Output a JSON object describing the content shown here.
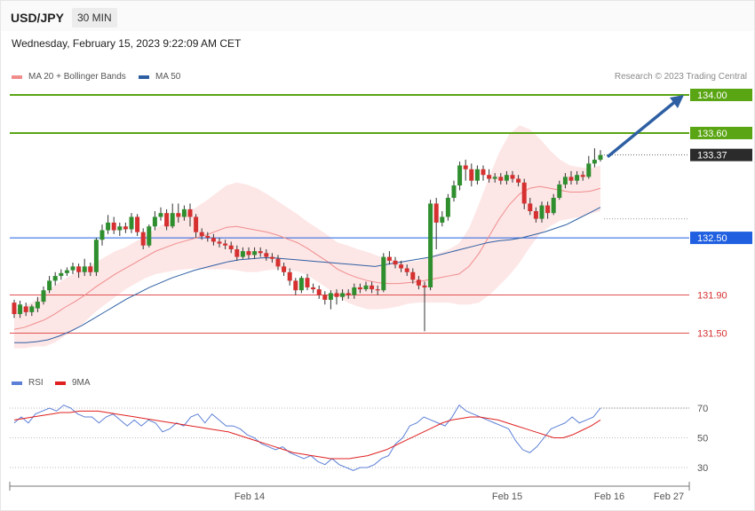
{
  "header": {
    "symbol": "USD/JPY",
    "timeframe": "30 MIN",
    "datetime": "Wednesday, February 15, 2023 9:22:09 AM CET"
  },
  "legend": {
    "ma20_label": "MA 20 + Bollinger Bands",
    "ma20_color": "#f08c8c",
    "ma50_label": "MA 50",
    "ma50_color": "#2e5fa3",
    "rsi_label": "RSI",
    "rsi_color": "#5b7fd6",
    "rsi_ma_label": "9MA",
    "rsi_ma_color": "#e02020"
  },
  "credit": "Research © 2023 Trading Central",
  "colors": {
    "up": "#2f8f2f",
    "down": "#d63030",
    "resistance": "#5aa514",
    "pivot": "#1f5fe0",
    "support": "#e05050"
  },
  "chart_data": {
    "type": "candlestick",
    "timeframe": "30 MIN",
    "ylim": [
      131.3,
      134.15
    ],
    "x_ticks": [
      "Feb 14",
      "Feb 15",
      "Feb 16",
      "Feb 27"
    ],
    "last_price": 133.37,
    "levels": [
      {
        "value": 134.0,
        "label": "134.00",
        "kind": "resistance"
      },
      {
        "value": 133.6,
        "label": "133.60",
        "kind": "resistance"
      },
      {
        "value": 132.5,
        "label": "132.50",
        "kind": "pivot"
      },
      {
        "value": 131.9,
        "label": "131.90",
        "kind": "support"
      },
      {
        "value": 131.5,
        "label": "131.50",
        "kind": "support"
      }
    ],
    "projection": {
      "from": 133.35,
      "to": 134.0,
      "direction": "up"
    },
    "candles": [
      [
        131.82,
        131.7,
        131.85,
        131.66
      ],
      [
        131.7,
        131.8,
        131.84,
        131.66
      ],
      [
        131.78,
        131.72,
        131.82,
        131.68
      ],
      [
        131.72,
        131.78,
        131.8,
        131.68
      ],
      [
        131.76,
        131.83,
        131.88,
        131.72
      ],
      [
        131.83,
        131.95,
        131.99,
        131.8
      ],
      [
        131.95,
        132.05,
        132.1,
        131.92
      ],
      [
        132.05,
        132.1,
        132.14,
        132.0
      ],
      [
        132.1,
        132.13,
        132.17,
        132.06
      ],
      [
        132.13,
        132.16,
        132.19,
        132.1
      ],
      [
        132.16,
        132.2,
        132.24,
        132.12
      ],
      [
        132.2,
        132.14,
        132.23,
        132.08
      ],
      [
        132.14,
        132.2,
        132.28,
        132.1
      ],
      [
        132.2,
        132.14,
        132.24,
        132.1
      ],
      [
        132.14,
        132.48,
        132.5,
        132.1
      ],
      [
        132.48,
        132.58,
        132.64,
        132.42
      ],
      [
        132.58,
        132.66,
        132.74,
        132.54
      ],
      [
        132.66,
        132.58,
        132.72,
        132.54
      ],
      [
        132.58,
        132.62,
        132.66,
        132.52
      ],
      [
        132.62,
        132.59,
        132.66,
        132.55
      ],
      [
        132.59,
        132.72,
        132.76,
        132.55
      ],
      [
        132.72,
        132.56,
        132.75,
        132.52
      ],
      [
        132.56,
        132.42,
        132.6,
        132.38
      ],
      [
        132.42,
        132.62,
        132.64,
        132.4
      ],
      [
        132.62,
        132.72,
        132.78,
        132.58
      ],
      [
        132.72,
        132.76,
        132.82,
        132.68
      ],
      [
        132.76,
        132.62,
        132.8,
        132.58
      ],
      [
        132.62,
        132.76,
        132.86,
        132.6
      ],
      [
        132.76,
        132.72,
        132.86,
        132.66
      ],
      [
        132.72,
        132.8,
        132.84,
        132.68
      ],
      [
        132.8,
        132.72,
        132.86,
        132.62
      ],
      [
        132.72,
        132.56,
        132.75,
        132.5
      ],
      [
        132.56,
        132.52,
        132.6,
        132.48
      ],
      [
        132.52,
        132.5,
        132.56,
        132.46
      ],
      [
        132.5,
        132.46,
        132.54,
        132.42
      ],
      [
        132.46,
        132.44,
        132.5,
        132.4
      ],
      [
        132.44,
        132.42,
        132.48,
        132.38
      ],
      [
        132.42,
        132.38,
        132.46,
        132.34
      ],
      [
        132.38,
        132.3,
        132.42,
        132.26
      ],
      [
        132.3,
        132.36,
        132.4,
        132.28
      ],
      [
        132.36,
        132.32,
        132.4,
        132.28
      ],
      [
        132.32,
        132.36,
        132.4,
        132.28
      ],
      [
        132.36,
        132.34,
        132.4,
        132.3
      ],
      [
        132.34,
        132.3,
        132.38,
        132.26
      ],
      [
        132.3,
        132.28,
        132.34,
        132.24
      ],
      [
        132.28,
        132.2,
        132.32,
        132.16
      ],
      [
        132.2,
        132.14,
        132.24,
        132.1
      ],
      [
        132.14,
        132.05,
        132.18,
        132.0
      ],
      [
        132.05,
        131.95,
        132.08,
        131.9
      ],
      [
        131.95,
        132.08,
        132.1,
        131.92
      ],
      [
        132.08,
        131.98,
        132.12,
        131.95
      ],
      [
        131.98,
        131.96,
        132.02,
        131.92
      ],
      [
        131.96,
        131.9,
        132.0,
        131.86
      ],
      [
        131.9,
        131.85,
        131.94,
        131.8
      ],
      [
        131.85,
        131.92,
        131.95,
        131.75
      ],
      [
        131.92,
        131.88,
        131.96,
        131.8
      ],
      [
        131.88,
        131.92,
        131.96,
        131.84
      ],
      [
        131.92,
        131.9,
        131.96,
        131.86
      ],
      [
        131.9,
        131.98,
        132.02,
        131.86
      ],
      [
        131.98,
        131.96,
        132.02,
        131.92
      ],
      [
        131.96,
        132.0,
        132.04,
        131.94
      ],
      [
        132.0,
        131.96,
        132.04,
        131.92
      ],
      [
        131.96,
        131.95,
        132.0,
        131.9
      ],
      [
        131.95,
        132.3,
        132.34,
        131.93
      ],
      [
        132.3,
        132.26,
        132.36,
        132.22
      ],
      [
        132.26,
        132.22,
        132.3,
        132.18
      ],
      [
        132.22,
        132.18,
        132.26,
        132.14
      ],
      [
        132.18,
        132.14,
        132.22,
        132.1
      ],
      [
        132.14,
        132.06,
        132.18,
        132.02
      ],
      [
        132.06,
        132.0,
        132.1,
        131.96
      ],
      [
        132.0,
        131.98,
        132.04,
        131.52
      ],
      [
        131.98,
        132.86,
        132.9,
        131.95
      ],
      [
        132.86,
        132.66,
        132.92,
        132.38
      ],
      [
        132.66,
        132.72,
        132.78,
        132.62
      ],
      [
        132.72,
        132.92,
        132.96,
        132.68
      ],
      [
        132.92,
        133.05,
        133.1,
        132.88
      ],
      [
        133.05,
        133.26,
        133.3,
        133.0
      ],
      [
        133.26,
        133.22,
        133.32,
        133.1
      ],
      [
        133.22,
        133.1,
        133.28,
        133.04
      ],
      [
        133.1,
        133.22,
        133.26,
        133.06
      ],
      [
        133.22,
        133.16,
        133.26,
        133.1
      ],
      [
        133.16,
        133.12,
        133.22,
        133.08
      ],
      [
        133.12,
        133.14,
        133.18,
        133.08
      ],
      [
        133.14,
        133.1,
        133.18,
        133.06
      ],
      [
        133.1,
        133.16,
        133.2,
        133.06
      ],
      [
        133.16,
        133.12,
        133.2,
        133.08
      ],
      [
        133.12,
        133.08,
        133.16,
        133.04
      ],
      [
        133.08,
        132.86,
        133.12,
        132.8
      ],
      [
        132.86,
        132.78,
        132.92,
        132.74
      ],
      [
        132.78,
        132.7,
        132.82,
        132.66
      ],
      [
        132.7,
        132.84,
        132.88,
        132.66
      ],
      [
        132.84,
        132.76,
        132.88,
        132.7
      ],
      [
        132.76,
        132.92,
        132.96,
        132.74
      ],
      [
        132.92,
        133.06,
        133.1,
        132.9
      ],
      [
        133.06,
        133.14,
        133.18,
        133.02
      ],
      [
        133.14,
        133.1,
        133.2,
        133.06
      ],
      [
        133.1,
        133.16,
        133.2,
        133.06
      ],
      [
        133.16,
        133.14,
        133.2,
        133.1
      ],
      [
        133.14,
        133.28,
        133.36,
        133.12
      ],
      [
        133.28,
        133.32,
        133.44,
        133.24
      ],
      [
        133.32,
        133.37,
        133.42,
        133.3
      ]
    ],
    "ma20": [
      131.54,
      131.56,
      131.6,
      131.64,
      131.7,
      131.77,
      131.83,
      131.9,
      131.98,
      132.05,
      132.12,
      132.18,
      132.24,
      132.3,
      132.36,
      132.4,
      132.44,
      132.47,
      132.5,
      132.53,
      132.57,
      132.61,
      132.62,
      132.6,
      132.58,
      132.56,
      132.53,
      132.49,
      132.45,
      132.39,
      132.32,
      132.25,
      132.17,
      132.12,
      132.08,
      132.05,
      132.03,
      132.02,
      132.02,
      132.03,
      132.04,
      132.06,
      132.08,
      132.1,
      132.12,
      132.2,
      132.34,
      132.52,
      132.7,
      132.85,
      132.96,
      133.02,
      133.04,
      133.02,
      133.0,
      132.98,
      132.98,
      132.99,
      133.02
    ],
    "ma50": [
      131.4,
      131.4,
      131.41,
      131.43,
      131.47,
      131.52,
      131.58,
      131.65,
      131.72,
      131.79,
      131.86,
      131.92,
      131.98,
      132.03,
      132.08,
      132.12,
      132.16,
      132.19,
      132.22,
      132.25,
      132.27,
      132.28,
      132.29,
      132.29,
      132.28,
      132.27,
      132.26,
      132.25,
      132.24,
      132.23,
      132.22,
      132.21,
      132.2,
      132.22,
      132.24,
      132.26,
      132.28,
      132.3,
      132.33,
      132.36,
      132.39,
      132.42,
      132.45,
      132.47,
      132.48,
      132.5,
      132.53,
      132.56,
      132.6,
      132.64,
      132.7,
      132.76,
      132.82
    ],
    "rsi": [
      60,
      64,
      60,
      66,
      68,
      70,
      68,
      72,
      70,
      66,
      64,
      64,
      60,
      64,
      66,
      62,
      58,
      62,
      58,
      62,
      60,
      54,
      56,
      60,
      58,
      64,
      66,
      60,
      66,
      62,
      58,
      58,
      56,
      52,
      50,
      46,
      44,
      42,
      44,
      40,
      38,
      36,
      38,
      34,
      32,
      36,
      32,
      30,
      28,
      30,
      30,
      32,
      36,
      38,
      46,
      50,
      58,
      60,
      64,
      62,
      60,
      58,
      64,
      72,
      68,
      66,
      64,
      62,
      60,
      58,
      56,
      48,
      42,
      40,
      44,
      50,
      56,
      58,
      60,
      64,
      60,
      62,
      64,
      70
    ],
    "rsi_ma": [
      62,
      63,
      64,
      65,
      66,
      67,
      67,
      68,
      68,
      68,
      67,
      66,
      65,
      64,
      63,
      62,
      61,
      60,
      59,
      58,
      57,
      56,
      55,
      54,
      52,
      50,
      48,
      46,
      44,
      42,
      40,
      39,
      38,
      37,
      36,
      36,
      36,
      37,
      38,
      40,
      42,
      45,
      48,
      51,
      54,
      57,
      60,
      62,
      63,
      64,
      64,
      63,
      62,
      60,
      58,
      56,
      54,
      52,
      50,
      50,
      52,
      55,
      58,
      62
    ]
  },
  "rsi_panel": {
    "levels": [
      "70",
      "50",
      "30"
    ]
  }
}
